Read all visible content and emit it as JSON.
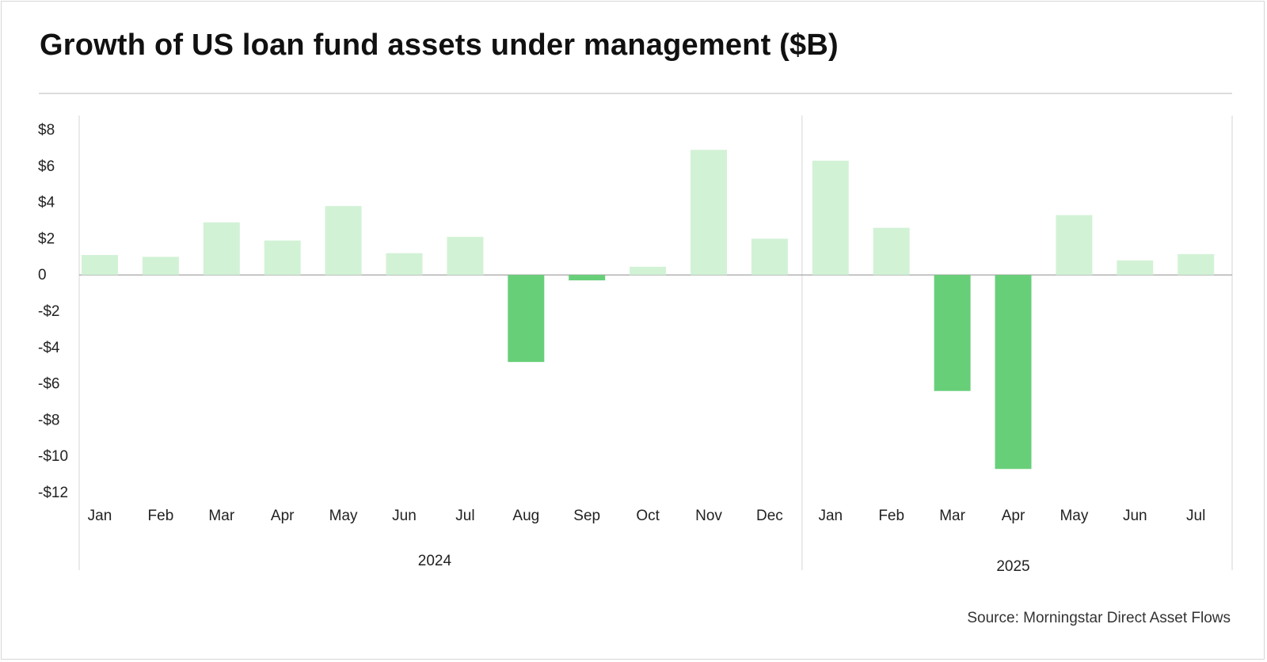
{
  "title": "Growth of US loan fund assets under management ($B)",
  "source": "Source: Morningstar Direct Asset Flows",
  "colors": {
    "positive": "#d2f2d6",
    "negative": "#68cf79",
    "grid": "#e4e4e4",
    "zero_line": "#9a9a9a",
    "text": "#222222"
  },
  "chart_data": {
    "type": "bar",
    "title": "Growth of US loan fund assets under management ($B)",
    "categories": [
      "Jan",
      "Feb",
      "Mar",
      "Apr",
      "May",
      "Jun",
      "Jul",
      "Aug",
      "Sep",
      "Oct",
      "Nov",
      "Dec",
      "Jan",
      "Feb",
      "Mar",
      "Apr",
      "May",
      "Jun",
      "Jul"
    ],
    "groups": [
      {
        "label": "2024",
        "start": 0,
        "end": 11
      },
      {
        "label": "2025",
        "start": 12,
        "end": 18
      }
    ],
    "values": [
      1.1,
      1.0,
      2.9,
      1.9,
      3.8,
      1.2,
      2.1,
      -4.8,
      -0.3,
      0.45,
      6.9,
      2.0,
      6.3,
      2.6,
      -6.4,
      -10.7,
      3.3,
      0.8,
      1.15
    ],
    "ylim": [
      -12,
      8
    ],
    "yticks": [
      8,
      6,
      4,
      2,
      0,
      -2,
      -4,
      -6,
      -8,
      -10,
      -12
    ],
    "ytick_labels": [
      "$8",
      "$6",
      "$4",
      "$2",
      "0",
      "-$2",
      "-$4",
      "-$6",
      "-$8",
      "-$10",
      "-$12"
    ],
    "xlabel": "",
    "ylabel": "",
    "grid": false,
    "legend": "none"
  }
}
